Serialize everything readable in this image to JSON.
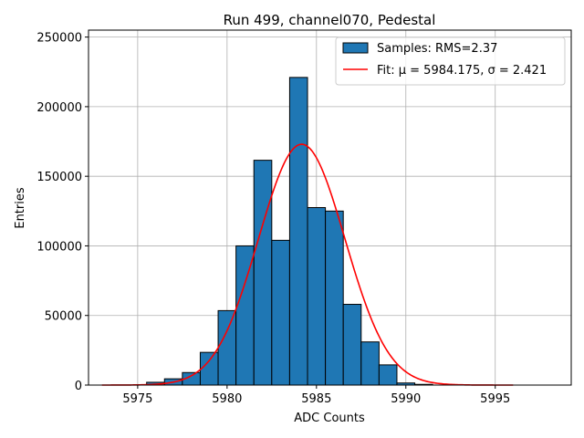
{
  "chart_data": {
    "type": "bar",
    "title": "Run 499, channel070, Pedestal",
    "xlabel": "ADC Counts",
    "ylabel": "Entries",
    "xlim": [
      5972.25,
      5999.25
    ],
    "ylim": [
      0,
      255000
    ],
    "xticks": [
      5975,
      5980,
      5985,
      5990,
      5995
    ],
    "yticks": [
      0,
      50000,
      100000,
      150000,
      200000,
      250000
    ],
    "grid": true,
    "legend_position": "top-right",
    "histogram": {
      "name": "Samples: RMS=2.37",
      "color": "#1f77b4",
      "edgecolor": "#000000",
      "bin_edges": [
        5975.5,
        5976.5,
        5977.5,
        5978.5,
        5979.5,
        5980.5,
        5981.5,
        5982.5,
        5983.5,
        5984.5,
        5985.5,
        5986.5,
        5987.5,
        5988.5,
        5989.5,
        5990.5,
        5991.5
      ],
      "counts": [
        2000,
        4500,
        9000,
        23500,
        53500,
        100000,
        161500,
        104000,
        221000,
        127500,
        125000,
        58000,
        31000,
        14500,
        1500,
        500
      ]
    },
    "fit": {
      "name": "Fit: μ = 5984.175, σ = 2.421",
      "color": "#ff0000",
      "mu": 5984.175,
      "sigma": 2.421,
      "amplitude": 173000,
      "x_range": [
        5973,
        5996
      ]
    }
  }
}
